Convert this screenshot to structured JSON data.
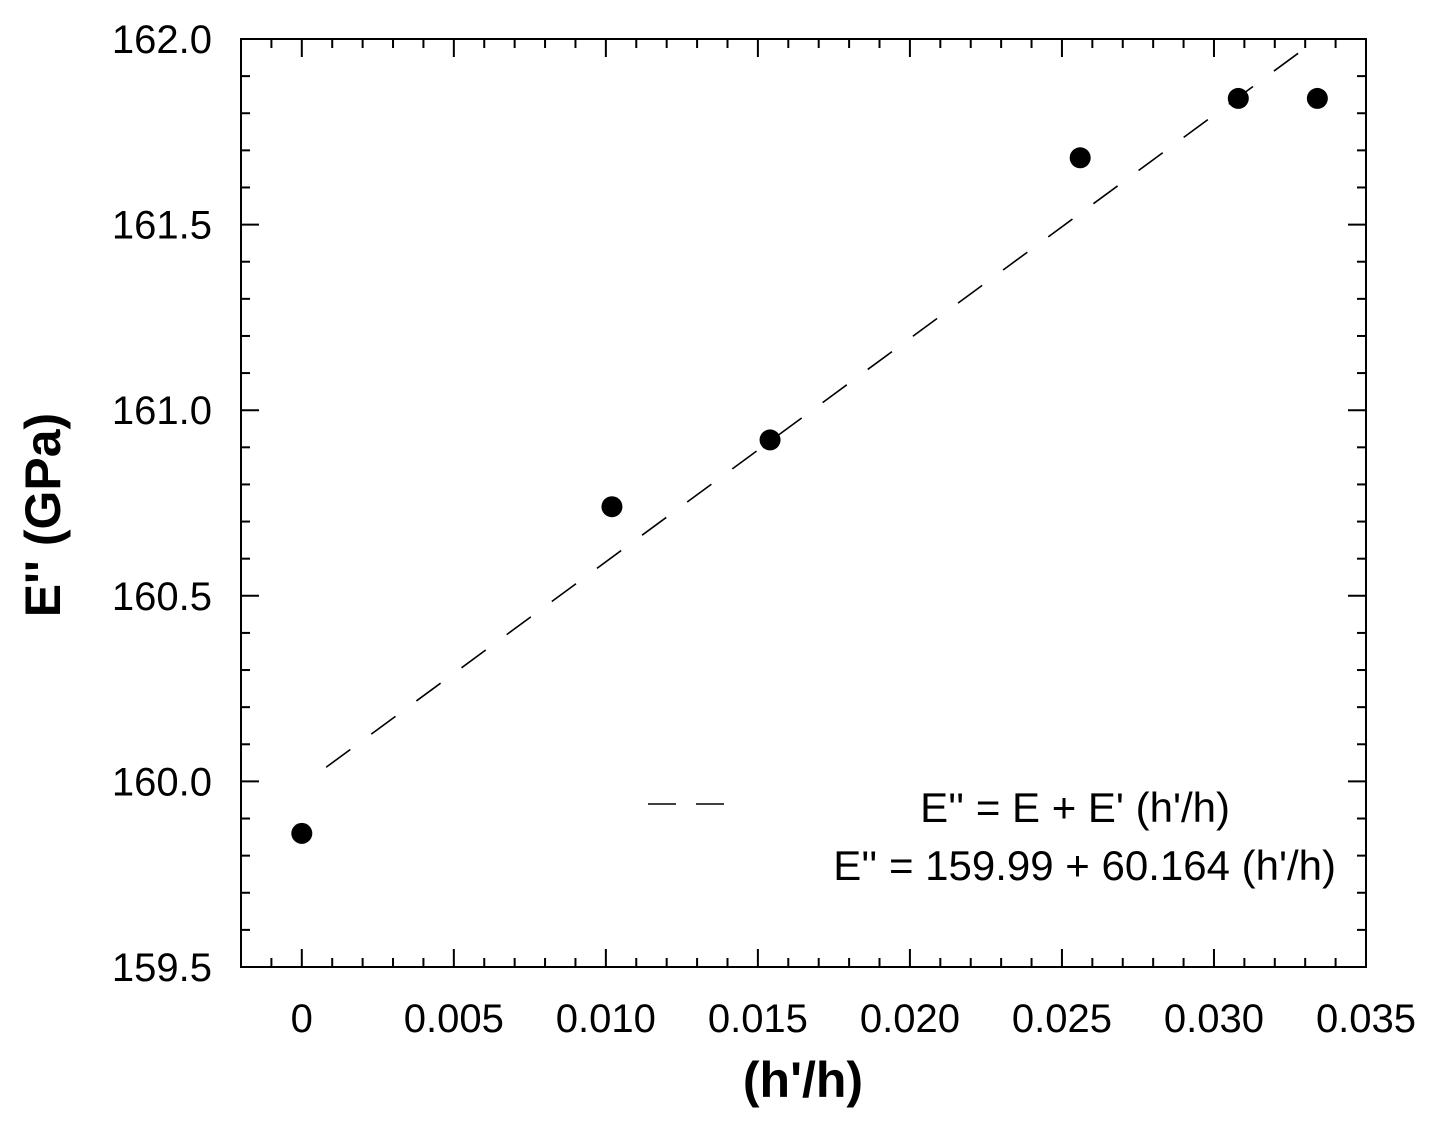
{
  "chart_data": {
    "type": "scatter",
    "xlabel": "(h'/h)",
    "ylabel": "E'' (GPa)",
    "xlim": [
      -0.002,
      0.035
    ],
    "ylim": [
      159.5,
      162.0
    ],
    "x_ticks": [
      {
        "value": 0,
        "label": "0"
      },
      {
        "value": 0.005,
        "label": "0.005"
      },
      {
        "value": 0.01,
        "label": "0.010"
      },
      {
        "value": 0.015,
        "label": "0.015"
      },
      {
        "value": 0.02,
        "label": "0.020"
      },
      {
        "value": 0.025,
        "label": "0.025"
      },
      {
        "value": 0.03,
        "label": "0.030"
      },
      {
        "value": 0.035,
        "label": "0.035"
      }
    ],
    "y_ticks": [
      {
        "value": 159.5,
        "label": "159.5"
      },
      {
        "value": 160.0,
        "label": "160.0"
      },
      {
        "value": 160.5,
        "label": "160.5"
      },
      {
        "value": 161.0,
        "label": "161.0"
      },
      {
        "value": 161.5,
        "label": "161.5"
      },
      {
        "value": 162.0,
        "label": "162.0"
      }
    ],
    "points": {
      "x": [
        0,
        0.0102,
        0.0154,
        0.0256,
        0.0308,
        0.0334
      ],
      "y": [
        159.86,
        160.74,
        160.92,
        161.68,
        161.84,
        161.84
      ],
      "color": "#000000"
    },
    "fit_line": {
      "intercept": 159.99,
      "slope": 60.164,
      "x_range": [
        0.0008,
        0.033
      ],
      "style": "dashed",
      "color": "#000000"
    },
    "legend": {
      "equation_general": "E'' = E + E' (h'/h)",
      "equation_fit": "E'' = 159.99 + 60.164 (h'/h)",
      "placement": "bottom-right"
    },
    "grid": false
  }
}
